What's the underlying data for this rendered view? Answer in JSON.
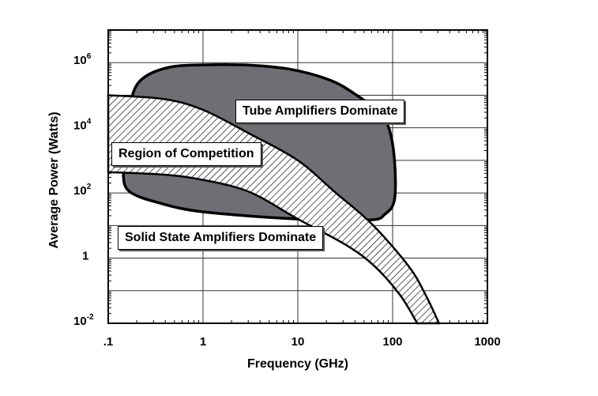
{
  "chart_data": {
    "type": "area",
    "title": "",
    "xlabel": "Frequency (GHz)",
    "ylabel": "Average Power (Watts)",
    "xscale": "log",
    "yscale": "log",
    "xlim": [
      0.1,
      1000
    ],
    "ylim": [
      0.01,
      10000000
    ],
    "grid": true,
    "x_ticks": [
      {
        "value": 0.1,
        "label": ".1"
      },
      {
        "value": 1,
        "label": "1"
      },
      {
        "value": 10,
        "label": "10"
      },
      {
        "value": 100,
        "label": "100"
      },
      {
        "value": 1000,
        "label": "1000"
      }
    ],
    "y_ticks": [
      {
        "value": 1000000,
        "base": "10",
        "exp": "6"
      },
      {
        "value": 10000,
        "base": "10",
        "exp": "4"
      },
      {
        "value": 100,
        "base": "10",
        "exp": "2"
      },
      {
        "value": 1,
        "base": "1",
        "exp": ""
      },
      {
        "value": 0.01,
        "base": "10",
        "exp": "-2"
      }
    ],
    "regions": [
      {
        "name": "Tube Amplifiers Dominate",
        "fill": "#6e6e74",
        "log10_points": [
          [
            -0.74,
            5.04
          ],
          [
            -0.62,
            5.55
          ],
          [
            -0.35,
            5.86
          ],
          [
            0.0,
            5.93
          ],
          [
            0.5,
            5.92
          ],
          [
            0.95,
            5.78
          ],
          [
            1.35,
            5.45
          ],
          [
            1.6,
            5.04
          ],
          [
            1.85,
            4.5
          ],
          [
            1.96,
            4.0
          ],
          [
            2.02,
            3.0
          ],
          [
            2.02,
            1.8
          ],
          [
            1.92,
            1.35
          ],
          [
            1.75,
            1.17
          ],
          [
            1.0,
            1.2
          ],
          [
            0.0,
            1.42
          ],
          [
            -0.47,
            1.7
          ],
          [
            -0.77,
            2.03
          ],
          [
            -0.84,
            2.5
          ],
          [
            -0.8,
            3.1
          ],
          [
            -0.76,
            4.2
          ]
        ]
      },
      {
        "name": "Region of Competition",
        "fill": "hatch",
        "upper_log10_points": [
          [
            -1,
            5.0
          ],
          [
            -0.41,
            4.88
          ],
          [
            0,
            4.55
          ],
          [
            0.49,
            3.82
          ],
          [
            1.0,
            3.0
          ],
          [
            1.39,
            2.03
          ],
          [
            1.78,
            1.05
          ],
          [
            2.17,
            -0.25
          ],
          [
            2.35,
            -1.14
          ],
          [
            2.49,
            -2
          ]
        ],
        "lower_log10_points": [
          [
            -1,
            2.64
          ],
          [
            -0.41,
            2.56
          ],
          [
            0,
            2.4
          ],
          [
            0.49,
            2.03
          ],
          [
            1.0,
            1.2
          ],
          [
            1.51,
            0.4
          ],
          [
            1.81,
            -0.25
          ],
          [
            2.08,
            -1.14
          ],
          [
            2.26,
            -2
          ]
        ]
      }
    ],
    "annotations": {
      "tube": "Tube Amplifiers Dominate",
      "competition": "Region of Competition",
      "solid": "Solid State Amplifiers Dominate"
    }
  }
}
